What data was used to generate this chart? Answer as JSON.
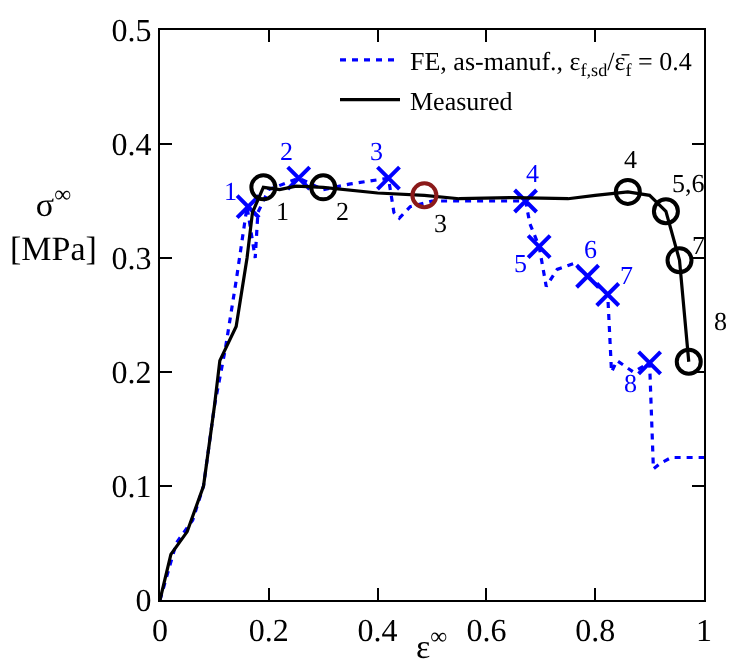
{
  "chart_data": {
    "type": "line",
    "xlabel": "ε$^{∞}$",
    "ylabel": "σ$^{∞}$ [MPa]",
    "xlim": [
      0,
      1
    ],
    "ylim": [
      0,
      0.5
    ],
    "xticks": [
      0,
      0.2,
      0.4,
      0.6,
      0.8,
      1
    ],
    "yticks": [
      0,
      0.1,
      0.2,
      0.3,
      0.4,
      0.5
    ],
    "grid": false,
    "legend": "top right",
    "series": [
      {
        "name": "FE, as-manuf., ε$_{f,sd}$/ε̄$_{f}$ = 0.4",
        "color": "#0000ff",
        "line_style": "dotted",
        "marker": "none",
        "x": [
          0,
          0.03,
          0.06,
          0.08,
          0.1,
          0.12,
          0.14,
          0.16,
          0.175,
          0.18,
          0.2,
          0.255,
          0.3,
          0.35,
          0.42,
          0.43,
          0.44,
          0.46,
          0.5,
          0.6,
          0.672,
          0.68,
          0.697,
          0.71,
          0.73,
          0.76,
          0.786,
          0.823,
          0.83,
          0.84,
          0.87,
          0.9,
          0.907,
          0.92,
          0.94,
          1
        ],
        "values": [
          0,
          0.05,
          0.07,
          0.1,
          0.17,
          0.22,
          0.28,
          0.345,
          0.3,
          0.34,
          0.36,
          0.37,
          0.36,
          0.365,
          0.37,
          0.34,
          0.335,
          0.345,
          0.35,
          0.35,
          0.35,
          0.33,
          0.31,
          0.275,
          0.29,
          0.295,
          0.284,
          0.268,
          0.2,
          0.21,
          0.2,
          0.208,
          0.115,
          0.12,
          0.125,
          0.125
        ]
      },
      {
        "type": "scatter",
        "color": "#0000ff",
        "marker": "cross",
        "x": [
          0.162,
          0.255,
          0.42,
          0.672,
          0.697,
          0.786,
          0.823,
          0.9
        ],
        "values": [
          0.345,
          0.37,
          0.37,
          0.35,
          0.31,
          0.284,
          0.268,
          0.208
        ]
      },
      {
        "name": "Measured",
        "color": "#000000",
        "line_style": "solid",
        "marker": "none",
        "x": [
          0,
          0.02,
          0.05,
          0.08,
          0.1,
          0.11,
          0.14,
          0.16,
          0.17,
          0.19,
          0.22,
          0.25,
          0.3,
          0.4,
          0.486,
          0.55,
          0.65,
          0.75,
          0.8,
          0.86,
          0.9,
          0.93,
          0.955,
          0.972
        ],
        "values": [
          0,
          0.04,
          0.06,
          0.1,
          0.17,
          0.21,
          0.24,
          0.3,
          0.34,
          0.362,
          0.36,
          0.363,
          0.362,
          0.357,
          0.355,
          0.352,
          0.353,
          0.352,
          0.355,
          0.358,
          0.355,
          0.341,
          0.298,
          0.209
        ]
      },
      {
        "type": "scatter",
        "color": "#000000",
        "colors": [
          "#000000",
          "#000000",
          "#8b1a1a",
          "#000000",
          "#000000",
          "#000000",
          "#000000"
        ],
        "marker": "circle",
        "x": [
          0.19,
          0.3,
          0.486,
          0.86,
          0.93,
          0.955,
          0.972
        ],
        "values": [
          0.362,
          0.362,
          0.355,
          0.358,
          0.341,
          0.298,
          0.209
        ]
      }
    ],
    "annotations": [
      {
        "text": "1",
        "x": 0.162,
        "y": 0.345
      },
      {
        "text": "2",
        "x": 0.255,
        "y": 0.37
      },
      {
        "text": "3",
        "x": 0.42,
        "y": 0.37
      },
      {
        "text": "4",
        "x": 0.672,
        "y": 0.35
      },
      {
        "text": "5",
        "x": 0.697,
        "y": 0.31
      },
      {
        "text": "6",
        "x": 0.786,
        "y": 0.284
      },
      {
        "text": "7",
        "x": 0.823,
        "y": 0.268
      },
      {
        "text": "8",
        "x": 0.9,
        "y": 0.208
      },
      {
        "text": "1",
        "x": 0.19,
        "y": 0.362
      },
      {
        "text": "2",
        "x": 0.3,
        "y": 0.362
      },
      {
        "text": "3",
        "x": 0.486,
        "y": 0.355
      },
      {
        "text": "4",
        "x": 0.86,
        "y": 0.358
      },
      {
        "text": "5,6",
        "x": 0.93,
        "y": 0.341
      },
      {
        "text": "7",
        "x": 0.955,
        "y": 0.298
      },
      {
        "text": "8",
        "x": 0.972,
        "y": 0.209
      }
    ]
  }
}
